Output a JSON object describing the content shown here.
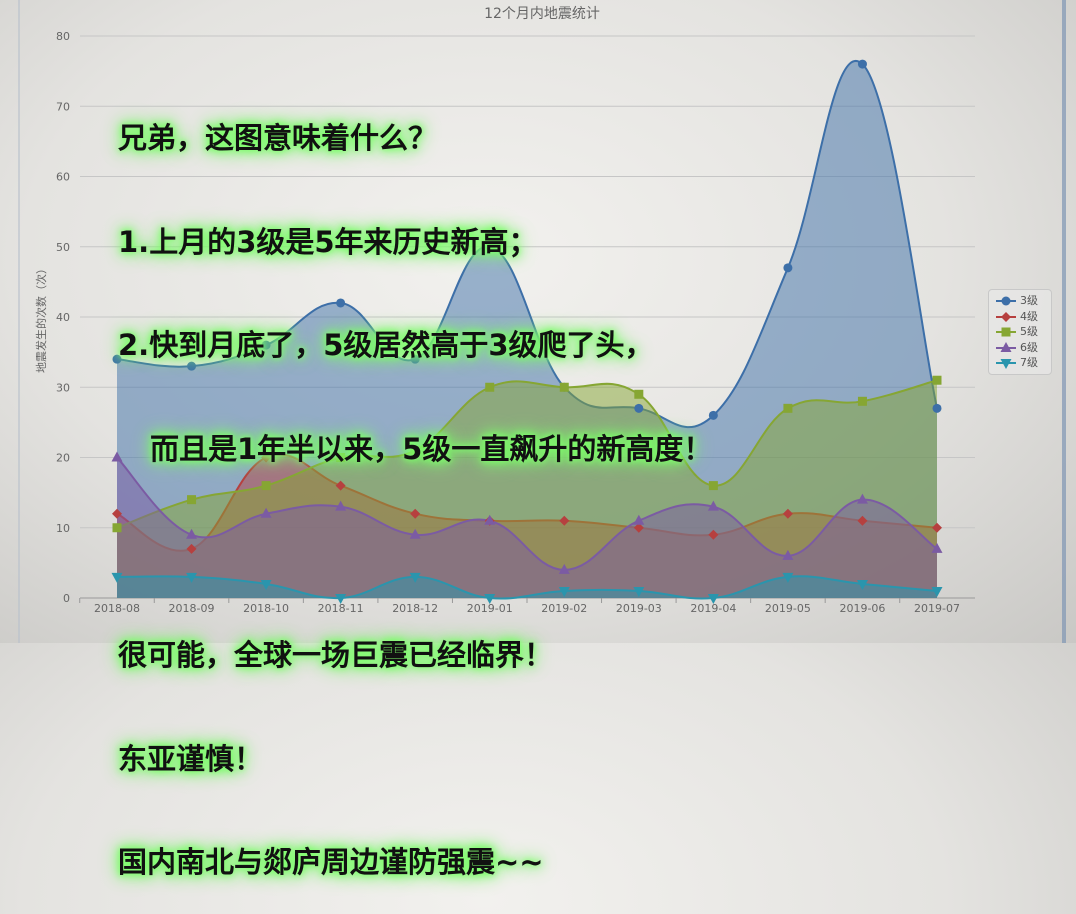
{
  "chart_data": {
    "type": "area",
    "title": "12个月内地震统计",
    "ylabel": "地震发生的次数（次）",
    "xlabel": "",
    "categories": [
      "2018-08",
      "2018-09",
      "2018-10",
      "2018-11",
      "2018-12",
      "2019-01",
      "2019-02",
      "2019-03",
      "2019-04",
      "2019-05",
      "2019-06",
      "2019-07"
    ],
    "ylim": [
      0,
      80
    ],
    "yticks": [
      0,
      10,
      20,
      30,
      40,
      50,
      60,
      70,
      80
    ],
    "grid": true,
    "legend_position": "right",
    "series": [
      {
        "name": "3级",
        "color": "#3d6fa8",
        "marker": "circle",
        "values": [
          34,
          33,
          36,
          42,
          34,
          50,
          30,
          27,
          26,
          47,
          76,
          27
        ]
      },
      {
        "name": "4级",
        "color": "#b6403f",
        "marker": "diamond",
        "values": [
          12,
          7,
          20,
          16,
          12,
          11,
          11,
          10,
          9,
          12,
          11,
          10
        ]
      },
      {
        "name": "5级",
        "color": "#86a633",
        "marker": "square",
        "values": [
          10,
          14,
          16,
          20,
          21,
          30,
          30,
          29,
          16,
          27,
          28,
          31
        ]
      },
      {
        "name": "6级",
        "color": "#7b5ba3",
        "marker": "triangle",
        "values": [
          20,
          9,
          12,
          13,
          9,
          11,
          4,
          11,
          13,
          6,
          14,
          7
        ]
      },
      {
        "name": "7级",
        "color": "#2a95ad",
        "marker": "triangle-down",
        "values": [
          3,
          3,
          2,
          0,
          3,
          0,
          1,
          1,
          0,
          3,
          2,
          1
        ]
      }
    ]
  },
  "overlay_text": {
    "line1": "兄弟，这图意味着什么？",
    "line2": "1.上月的3级是5年来历史新高；",
    "line3": "2.快到月底了，5级居然高于3级爬了头，",
    "line4": "而且是1年半以来，5级一直飙升的新高度！",
    "line5": "很可能，全球一场巨震已经临界！",
    "line6": "东亚谨慎！",
    "line7": "国内南北与郯庐周边谨防强震~~"
  }
}
